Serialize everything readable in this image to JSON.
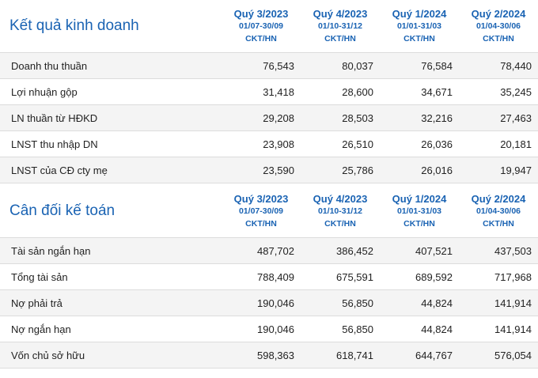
{
  "business": {
    "title": "Kết quả kinh doanh",
    "columns": [
      {
        "quarter": "Quý 3/2023",
        "range": "01/07-30/09",
        "unit": "CKT/HN"
      },
      {
        "quarter": "Quý 4/2023",
        "range": "01/10-31/12",
        "unit": "CKT/HN"
      },
      {
        "quarter": "Quý 1/2024",
        "range": "01/01-31/03",
        "unit": "CKT/HN"
      },
      {
        "quarter": "Quý 2/2024",
        "range": "01/04-30/06",
        "unit": "CKT/HN"
      }
    ],
    "rows": [
      {
        "label": "Doanh thu thuần",
        "values": [
          "76,543",
          "80,037",
          "76,584",
          "78,440"
        ]
      },
      {
        "label": "Lợi nhuận gộp",
        "values": [
          "31,418",
          "28,600",
          "34,671",
          "35,245"
        ]
      },
      {
        "label": "LN thuần từ HĐKD",
        "values": [
          "29,208",
          "28,503",
          "32,216",
          "27,463"
        ]
      },
      {
        "label": "LNST thu nhập DN",
        "values": [
          "23,908",
          "26,510",
          "26,036",
          "20,181"
        ]
      },
      {
        "label": "LNST của CĐ cty mẹ",
        "values": [
          "23,590",
          "25,786",
          "26,016",
          "19,947"
        ]
      }
    ]
  },
  "balance": {
    "title": "Cân đối kế toán",
    "columns": [
      {
        "quarter": "Quý 3/2023",
        "range": "01/07-30/09",
        "unit": "CKT/HN"
      },
      {
        "quarter": "Quý 4/2023",
        "range": "01/10-31/12",
        "unit": "CKT/HN"
      },
      {
        "quarter": "Quý 1/2024",
        "range": "01/01-31/03",
        "unit": "CKT/HN"
      },
      {
        "quarter": "Quý 2/2024",
        "range": "01/04-30/06",
        "unit": "CKT/HN"
      }
    ],
    "rows": [
      {
        "label": "Tài sản ngắn hạn",
        "values": [
          "487,702",
          "386,452",
          "407,521",
          "437,503"
        ]
      },
      {
        "label": "Tổng tài sản",
        "values": [
          "788,409",
          "675,591",
          "689,592",
          "717,968"
        ]
      },
      {
        "label": "Nợ phải trả",
        "values": [
          "190,046",
          "56,850",
          "44,824",
          "141,914"
        ]
      },
      {
        "label": "Nợ ngắn hạn",
        "values": [
          "190,046",
          "56,850",
          "44,824",
          "141,914"
        ]
      },
      {
        "label": "Vốn chủ sở hữu",
        "values": [
          "598,363",
          "618,741",
          "644,767",
          "576,054"
        ]
      }
    ]
  },
  "colors": {
    "accent": "#1a63b3",
    "row_alt": "#f4f4f4",
    "border": "#dcdcdc"
  }
}
